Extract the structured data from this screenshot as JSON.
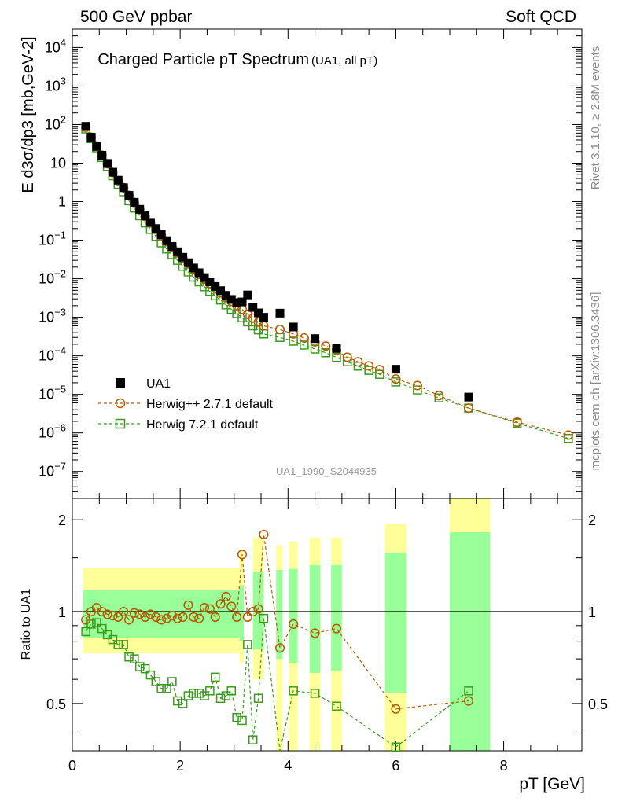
{
  "header": {
    "left": "500 GeV ppbar",
    "right": "Soft QCD"
  },
  "side_labels": {
    "rivet": "Rivet 3.1.10, ≥ 2.8M events",
    "mcplots": "mcplots.cern.ch [arXiv:1306.3436]"
  },
  "chart_data": [
    {
      "type": "scatter",
      "title": "Charged Particle pT Spectrum",
      "subtitle": "(UA1, all pT)",
      "watermark": "UA1_1990_S2044935",
      "ylabel": "E d3σ/dp3 [mb,GeV-2]",
      "xlabel": "pT [GeV]",
      "xlim": [
        0,
        9.45
      ],
      "ylim": [
        2e-08,
        30000.0
      ],
      "yscale": "log",
      "y_ticks": [
        "10^-7",
        "10^-6",
        "10^-5",
        "10^-4",
        "10^-3",
        "10^-2",
        "10^-1",
        "1",
        "10",
        "10^2",
        "10^3",
        "10^4"
      ],
      "x_ticks": [
        "0",
        "2",
        "4",
        "6",
        "8"
      ],
      "legend": {
        "placement": "bottom-left"
      },
      "series": [
        {
          "name": "UA1",
          "color": "#000000",
          "marker": "filled-square",
          "x": [
            0.25,
            0.35,
            0.45,
            0.55,
            0.65,
            0.75,
            0.85,
            0.95,
            1.05,
            1.15,
            1.25,
            1.35,
            1.45,
            1.55,
            1.65,
            1.75,
            1.85,
            1.95,
            2.05,
            2.15,
            2.25,
            2.35,
            2.45,
            2.55,
            2.65,
            2.75,
            2.85,
            2.95,
            3.05,
            3.15,
            3.25,
            3.35,
            3.45,
            3.55,
            3.85,
            4.1,
            4.5,
            4.9,
            6.0,
            7.35
          ],
          "y": [
            90,
            47,
            27,
            16,
            9.8,
            5.8,
            3.6,
            2.3,
            1.45,
            0.96,
            0.63,
            0.43,
            0.29,
            0.2,
            0.14,
            0.097,
            0.069,
            0.05,
            0.036,
            0.026,
            0.019,
            0.0143,
            0.0107,
            0.0083,
            0.0063,
            0.0049,
            0.0037,
            0.0029,
            0.0024,
            0.0025,
            0.0038,
            0.0018,
            0.0013,
            0.001,
            0.00128,
            0.00056,
            0.00028,
            0.000155,
            4.5e-05,
            8.5e-06
          ]
        },
        {
          "name": "Herwig++ 2.7.1 default",
          "color": "#b45a00",
          "marker": "open-circle",
          "x": [
            0.25,
            0.35,
            0.45,
            0.55,
            0.65,
            0.75,
            0.85,
            0.95,
            1.05,
            1.15,
            1.25,
            1.35,
            1.45,
            1.55,
            1.65,
            1.75,
            1.85,
            1.95,
            2.05,
            2.15,
            2.25,
            2.35,
            2.45,
            2.55,
            2.65,
            2.75,
            2.85,
            2.95,
            3.05,
            3.15,
            3.25,
            3.35,
            3.45,
            3.55,
            3.85,
            4.1,
            4.3,
            4.5,
            4.7,
            4.9,
            5.1,
            5.3,
            5.5,
            5.7,
            6.0,
            6.4,
            6.8,
            7.35,
            8.25,
            9.2
          ],
          "y": [
            85,
            47,
            28,
            16,
            9.6,
            5.7,
            3.5,
            2.3,
            1.45,
            0.95,
            0.62,
            0.41,
            0.28,
            0.19,
            0.13,
            0.092,
            0.067,
            0.047,
            0.034,
            0.025,
            0.018,
            0.013,
            0.0098,
            0.0074,
            0.0056,
            0.0043,
            0.0033,
            0.0026,
            0.002,
            0.0016,
            0.0012,
            0.00095,
            0.00075,
            0.0006,
            0.00048,
            0.00037,
            0.00029,
            0.00023,
            0.00018,
            0.000138,
            9.2e-05,
            7e-05,
            5.5e-05,
            4.4e-05,
            2.5e-05,
            1.7e-05,
            9.3e-06,
            4.4e-06,
            1.9e-06,
            8.8e-07
          ]
        },
        {
          "name": "Herwig 7.2.1 default",
          "color": "#3a9a1c",
          "marker": "open-square",
          "x": [
            0.25,
            0.35,
            0.45,
            0.55,
            0.65,
            0.75,
            0.85,
            0.95,
            1.05,
            1.15,
            1.25,
            1.35,
            1.45,
            1.55,
            1.65,
            1.75,
            1.85,
            1.95,
            2.05,
            2.15,
            2.25,
            2.35,
            2.45,
            2.55,
            2.65,
            2.75,
            2.85,
            2.95,
            3.05,
            3.15,
            3.25,
            3.35,
            3.45,
            3.55,
            3.85,
            4.1,
            4.3,
            4.5,
            4.7,
            4.9,
            5.1,
            5.3,
            5.5,
            5.7,
            6.0,
            6.4,
            6.8,
            7.35,
            8.25,
            9.2
          ],
          "y": [
            77,
            43,
            25,
            14,
            8.2,
            4.7,
            2.8,
            1.8,
            1.05,
            0.68,
            0.43,
            0.28,
            0.19,
            0.125,
            0.085,
            0.059,
            0.042,
            0.03,
            0.021,
            0.015,
            0.011,
            0.0083,
            0.0062,
            0.0047,
            0.0036,
            0.0028,
            0.0021,
            0.0016,
            0.00124,
            0.00097,
            0.00076,
            0.0006,
            0.00047,
            0.00037,
            0.0003,
            0.00024,
            0.00019,
            0.00015,
            0.00012,
            9.1e-05,
            7e-05,
            5.4e-05,
            4.2e-05,
            3.3e-05,
            2.1e-05,
            1.3e-05,
            8.1e-06,
            4.4e-06,
            1.8e-06,
            7.2e-07
          ]
        }
      ]
    },
    {
      "type": "scatter",
      "ylabel": "Ratio to UA1",
      "xlabel": "pT [GeV]",
      "xlim": [
        0,
        9.45
      ],
      "ylim": [
        0.35,
        2.35
      ],
      "yscale": "log",
      "y_ticks": [
        "0.5",
        "1",
        "2"
      ],
      "x_ticks": [
        "0",
        "2",
        "4",
        "6",
        "8"
      ],
      "bands": {
        "colors": {
          "outer": "#ffff99",
          "inner": "#99ff99"
        },
        "bins": [
          {
            "x0": 0.2,
            "x1": 3.1,
            "outer": [
              0.73,
              1.39
            ],
            "inner": [
              0.82,
              1.18
            ]
          },
          {
            "x0": 3.1,
            "x1": 3.18,
            "outer": [
              0.68,
              1.58
            ],
            "inner": [
              0.8,
              1.22
            ]
          },
          {
            "x0": 3.35,
            "x1": 3.55,
            "outer": [
              0.6,
              1.75
            ],
            "inner": [
              0.75,
              1.35
            ]
          },
          {
            "x0": 3.78,
            "x1": 3.9,
            "outer": [
              0.35,
              1.65
            ],
            "inner": [
              0.7,
              1.37
            ]
          },
          {
            "x0": 4.02,
            "x1": 4.18,
            "outer": [
              0.35,
              1.7
            ],
            "inner": [
              0.68,
              1.38
            ]
          },
          {
            "x0": 4.4,
            "x1": 4.6,
            "outer": [
              0.35,
              1.75
            ],
            "inner": [
              0.63,
              1.42
            ]
          },
          {
            "x0": 4.8,
            "x1": 5.0,
            "outer": [
              0.35,
              1.75
            ],
            "inner": [
              0.64,
              1.42
            ]
          },
          {
            "x0": 5.8,
            "x1": 6.2,
            "outer": [
              0.35,
              1.94
            ],
            "inner": [
              0.54,
              1.56
            ]
          },
          {
            "x0": 7.0,
            "x1": 7.75,
            "outer": [
              0.35,
              2.4
            ],
            "inner": [
              0.35,
              1.82
            ]
          }
        ]
      },
      "reference_line": 1,
      "series": [
        {
          "name": "Herwig++ 2.7.1 default",
          "color": "#b45a00",
          "marker": "open-circle",
          "x": [
            0.25,
            0.35,
            0.45,
            0.55,
            0.65,
            0.75,
            0.85,
            0.95,
            1.05,
            1.15,
            1.25,
            1.35,
            1.45,
            1.55,
            1.65,
            1.75,
            1.85,
            1.95,
            2.05,
            2.15,
            2.25,
            2.35,
            2.45,
            2.55,
            2.65,
            2.75,
            2.85,
            2.95,
            3.05,
            3.15,
            3.25,
            3.35,
            3.45,
            3.55,
            3.85,
            4.1,
            4.5,
            4.9,
            6.0,
            7.35
          ],
          "y": [
            0.94,
            1.0,
            1.03,
            1.0,
            0.98,
            0.97,
            0.96,
            1.0,
            0.94,
            0.99,
            0.98,
            0.96,
            0.98,
            0.96,
            0.94,
            0.95,
            0.97,
            0.95,
            0.96,
            1.05,
            0.96,
            0.95,
            1.03,
            1.02,
            0.96,
            1.06,
            1.12,
            1.04,
            0.96,
            1.54,
            0.96,
            1.0,
            1.02,
            1.79,
            0.76,
            0.91,
            0.85,
            0.88,
            0.48,
            0.51
          ]
        },
        {
          "name": "Herwig 7.2.1 default",
          "color": "#3a9a1c",
          "marker": "open-square",
          "x": [
            0.25,
            0.35,
            0.45,
            0.55,
            0.65,
            0.75,
            0.85,
            0.95,
            1.05,
            1.15,
            1.25,
            1.35,
            1.45,
            1.55,
            1.65,
            1.75,
            1.85,
            1.95,
            2.05,
            2.15,
            2.25,
            2.35,
            2.45,
            2.55,
            2.65,
            2.75,
            2.85,
            2.95,
            3.05,
            3.15,
            3.25,
            3.35,
            3.45,
            3.55,
            3.85,
            4.1,
            4.5,
            4.9,
            6.0,
            7.35
          ],
          "y": [
            0.86,
            0.91,
            0.92,
            0.88,
            0.84,
            0.81,
            0.78,
            0.78,
            0.71,
            0.7,
            0.66,
            0.65,
            0.62,
            0.59,
            0.56,
            0.56,
            0.59,
            0.51,
            0.5,
            0.53,
            0.54,
            0.54,
            0.53,
            0.55,
            0.61,
            0.52,
            0.53,
            0.55,
            0.45,
            0.44,
            0.78,
            0.38,
            0.52,
            0.95,
            0.33,
            0.55,
            0.54,
            0.49,
            0.36,
            0.55
          ]
        }
      ]
    }
  ]
}
